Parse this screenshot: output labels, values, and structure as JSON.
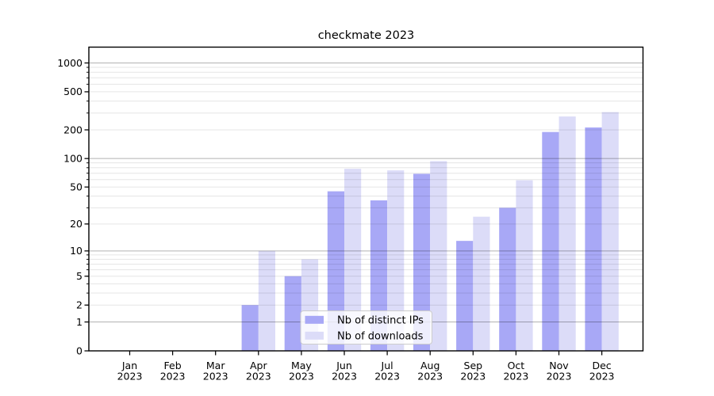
{
  "chart_data": {
    "type": "bar",
    "title": "checkmate 2023",
    "year": "2023",
    "months": [
      "Jan",
      "Feb",
      "Mar",
      "Apr",
      "May",
      "Jun",
      "Jul",
      "Aug",
      "Sep",
      "Oct",
      "Nov",
      "Dec"
    ],
    "series": [
      {
        "name": "Nb of distinct IPs",
        "color": "#a8a8f6",
        "values": [
          0,
          0,
          0,
          2,
          5,
          45,
          36,
          69,
          13,
          30,
          190,
          212
        ]
      },
      {
        "name": "Nb of downloads",
        "color": "#dcdcf8",
        "values": [
          0,
          0,
          0,
          10,
          8,
          78,
          75,
          94,
          24,
          59,
          276,
          307
        ]
      }
    ],
    "y_scale": "log10(value+1), 0 at baseline",
    "y_ticks": [
      0,
      1,
      2,
      5,
      10,
      20,
      50,
      100,
      200,
      500,
      1000
    ],
    "major_grid": [
      1,
      10,
      100,
      1000
    ],
    "minor_grid": [
      2,
      3,
      4,
      5,
      6,
      7,
      8,
      9,
      20,
      30,
      40,
      50,
      60,
      70,
      80,
      90,
      200,
      300,
      400,
      500,
      600,
      700,
      800,
      900
    ],
    "ylim": [
      0,
      1400
    ],
    "xlabel": "",
    "ylabel": "",
    "grid": true,
    "legend_position": "lower center",
    "legend_entries": [
      "Nb of distinct IPs",
      "Nb of downloads"
    ]
  },
  "colors": {
    "background": "#ffffff",
    "axis_frame": "#000000",
    "major_grid": "rgba(0,0,0,0.30)",
    "minor_grid": "rgba(0,0,0,0.10)",
    "legend_background": "rgba(255,255,255,0.8)",
    "legend_border": "#cccccc",
    "bar_dark": "#a8a8f6",
    "bar_light": "#dcdcf8"
  }
}
